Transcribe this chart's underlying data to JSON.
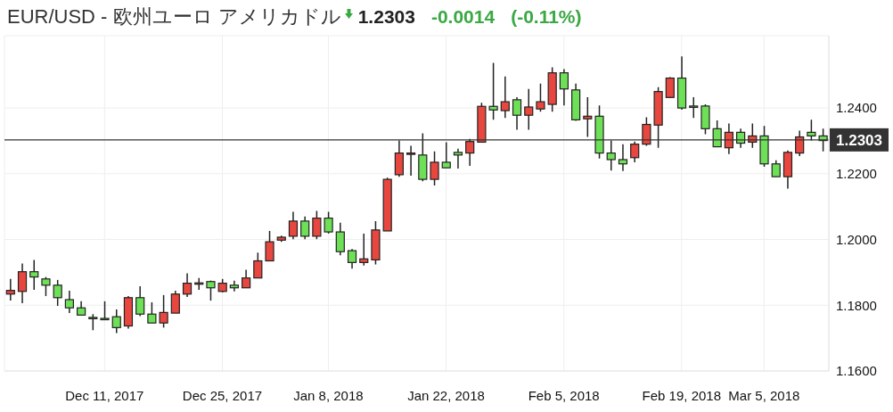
{
  "chart_data": {
    "type": "candlestick",
    "title": "EUR/USD - 欧州ユーロ アメリカドル",
    "annotations": [
      "1.2303",
      "-0.0014",
      "(-0.11%)"
    ],
    "categories": [
      null,
      null,
      null,
      null,
      null,
      null,
      null,
      null,
      "Dec 11, 2017",
      null,
      null,
      null,
      null,
      null,
      null,
      null,
      null,
      null,
      "Dec 25, 2017",
      null,
      null,
      null,
      null,
      null,
      null,
      null,
      null,
      "Jan 8, 2018",
      null,
      null,
      null,
      null,
      null,
      null,
      null,
      null,
      null,
      "Jan 22, 2018",
      null,
      null,
      null,
      null,
      null,
      null,
      null,
      null,
      null,
      "Feb 5, 2018",
      null,
      null,
      null,
      null,
      null,
      null,
      null,
      null,
      null,
      "Feb 19, 2018",
      null,
      null,
      null,
      null,
      null,
      null,
      "Mar 5, 2018",
      null,
      null,
      null,
      null,
      null
    ],
    "ohlc": [
      [
        1.1834,
        1.188,
        1.1814,
        1.1845
      ],
      [
        1.1842,
        1.1927,
        1.1806,
        1.1902
      ],
      [
        1.1902,
        1.1938,
        1.1847,
        1.1886
      ],
      [
        1.188,
        1.1886,
        1.1828,
        1.1861
      ],
      [
        1.1861,
        1.1877,
        1.1798,
        1.1823
      ],
      [
        1.1817,
        1.1844,
        1.1776,
        1.1792
      ],
      [
        1.1792,
        1.1812,
        1.177,
        1.177
      ],
      [
        1.1763,
        1.1773,
        1.1724,
        1.176
      ],
      [
        1.176,
        1.1812,
        1.1759,
        1.1759
      ],
      [
        1.1765,
        1.1787,
        1.1715,
        1.1732
      ],
      [
        1.1737,
        1.1828,
        1.1729,
        1.1823
      ],
      [
        1.1823,
        1.1858,
        1.1767,
        1.1773
      ],
      [
        1.1773,
        1.1809,
        1.1746,
        1.1746
      ],
      [
        1.1746,
        1.1831,
        1.1732,
        1.1778
      ],
      [
        1.1776,
        1.1844,
        1.1776,
        1.1834
      ],
      [
        1.1834,
        1.1897,
        1.1825,
        1.1867
      ],
      [
        1.1866,
        1.1883,
        1.1847,
        1.1868
      ],
      [
        1.1872,
        1.1875,
        1.1814,
        1.1853
      ],
      [
        1.1842,
        1.188,
        1.1839,
        1.1867
      ],
      [
        1.1861,
        1.1875,
        1.1842,
        1.1853
      ],
      [
        1.1853,
        1.1908,
        1.1853,
        1.1883
      ],
      [
        1.1883,
        1.196,
        1.1883,
        1.1935
      ],
      [
        1.1935,
        1.2026,
        1.1935,
        1.1993
      ],
      [
        1.1998,
        1.2012,
        1.1993,
        1.2007
      ],
      [
        1.201,
        1.2084,
        1.2001,
        1.2056
      ],
      [
        1.2056,
        1.207,
        1.2001,
        1.201
      ],
      [
        1.201,
        1.2087,
        1.2001,
        1.2065
      ],
      [
        1.2065,
        1.2084,
        1.2018,
        1.2023
      ],
      [
        1.2023,
        1.2051,
        1.1952,
        1.1963
      ],
      [
        1.1966,
        1.1971,
        1.1911,
        1.193
      ],
      [
        1.193,
        1.2018,
        1.1921,
        1.1941
      ],
      [
        1.1938,
        1.2056,
        1.1924,
        1.2029
      ],
      [
        1.2026,
        1.2188,
        1.2026,
        1.2183
      ],
      [
        1.2197,
        1.2301,
        1.2191,
        1.2263
      ],
      [
        1.2259,
        1.2285,
        1.2194,
        1.2263
      ],
      [
        1.2257,
        1.2323,
        1.2177,
        1.2183
      ],
      [
        1.2183,
        1.2268,
        1.2164,
        1.2235
      ],
      [
        1.2235,
        1.2296,
        1.2218,
        1.2218
      ],
      [
        1.2265,
        1.2276,
        1.2216,
        1.2257
      ],
      [
        1.2263,
        1.2306,
        1.2224,
        1.2298
      ],
      [
        1.2296,
        1.2416,
        1.2296,
        1.2405
      ],
      [
        1.2405,
        1.2537,
        1.2364,
        1.2394
      ],
      [
        1.2392,
        1.2496,
        1.237,
        1.2419
      ],
      [
        1.2425,
        1.2433,
        1.2334,
        1.2378
      ],
      [
        1.2378,
        1.2458,
        1.2334,
        1.2403
      ],
      [
        1.2397,
        1.2474,
        1.2389,
        1.2419
      ],
      [
        1.2411,
        1.2524,
        1.2389,
        1.2507
      ],
      [
        1.2507,
        1.2518,
        1.2408,
        1.2458
      ],
      [
        1.2455,
        1.2474,
        1.2361,
        1.2364
      ],
      [
        1.2367,
        1.2433,
        1.2312,
        1.2375
      ],
      [
        1.2375,
        1.2408,
        1.2246,
        1.2263
      ],
      [
        1.2263,
        1.2301,
        1.221,
        1.2243
      ],
      [
        1.2243,
        1.229,
        1.2208,
        1.223
      ],
      [
        1.2249,
        1.2298,
        1.2235,
        1.229
      ],
      [
        1.229,
        1.2372,
        1.2285,
        1.235
      ],
      [
        1.2348,
        1.2463,
        1.2279,
        1.245
      ],
      [
        1.2432,
        1.2494,
        1.243,
        1.2491
      ],
      [
        1.2491,
        1.2557,
        1.2395,
        1.24
      ],
      [
        1.2406,
        1.2433,
        1.237,
        1.2403
      ],
      [
        1.2406,
        1.2411,
        1.232,
        1.2337
      ],
      [
        1.2337,
        1.2362,
        1.2282,
        1.2282
      ],
      [
        1.2279,
        1.2353,
        1.226,
        1.2326
      ],
      [
        1.2326,
        1.2337,
        1.2279,
        1.2293
      ],
      [
        1.2296,
        1.2353,
        1.2279,
        1.2315
      ],
      [
        1.2315,
        1.2345,
        1.2221,
        1.223
      ],
      [
        1.223,
        1.2241,
        1.2191,
        1.2191
      ],
      [
        1.2191,
        1.2271,
        1.2155,
        1.2265
      ],
      [
        1.2263,
        1.2331,
        1.2254,
        1.2312
      ],
      [
        1.2326,
        1.2364,
        1.2301,
        1.2315
      ],
      [
        1.2315,
        1.2337,
        1.2268,
        1.2301
      ]
    ],
    "colors": [
      "#e8473f",
      "#e8473f",
      "#6ee057",
      "#6ee057",
      "#6ee057",
      "#6ee057",
      "#6ee057",
      "#6ee057",
      "#6ee057",
      "#6ee057",
      "#e8473f",
      "#6ee057",
      "#6ee057",
      "#e8473f",
      "#e8473f",
      "#e8473f",
      "#e8473f",
      "#6ee057",
      "#e8473f",
      "#6ee057",
      "#e8473f",
      "#e8473f",
      "#e8473f",
      "#e8473f",
      "#e8473f",
      "#6ee057",
      "#e8473f",
      "#6ee057",
      "#6ee057",
      "#6ee057",
      "#e8473f",
      "#e8473f",
      "#e8473f",
      "#e8473f",
      "#e8473f",
      "#6ee057",
      "#e8473f",
      "#6ee057",
      "#6ee057",
      "#e8473f",
      "#e8473f",
      "#6ee057",
      "#e8473f",
      "#6ee057",
      "#e8473f",
      "#e8473f",
      "#e8473f",
      "#6ee057",
      "#6ee057",
      "#e8473f",
      "#6ee057",
      "#6ee057",
      "#6ee057",
      "#e8473f",
      "#e8473f",
      "#e8473f",
      "#e8473f",
      "#6ee057",
      "#6ee057",
      "#6ee057",
      "#6ee057",
      "#e8473f",
      "#6ee057",
      "#e8473f",
      "#6ee057",
      "#6ee057",
      "#e8473f",
      "#e8473f",
      "#6ee057",
      "#6ee057"
    ],
    "ylim": [
      1.16,
      1.262
    ],
    "yticks": [
      {
        "value": 1.16,
        "label": "1.1600"
      },
      {
        "value": 1.18,
        "label": "1.1800"
      },
      {
        "value": 1.2,
        "label": "1.2000"
      },
      {
        "value": 1.22,
        "label": "1.2200"
      },
      {
        "value": 1.24,
        "label": "1.2400"
      }
    ],
    "ref_lines": [
      {
        "axis": "y",
        "value": 1.2303,
        "label": "1.2303",
        "color": "#333333"
      }
    ],
    "grid": true
  }
}
